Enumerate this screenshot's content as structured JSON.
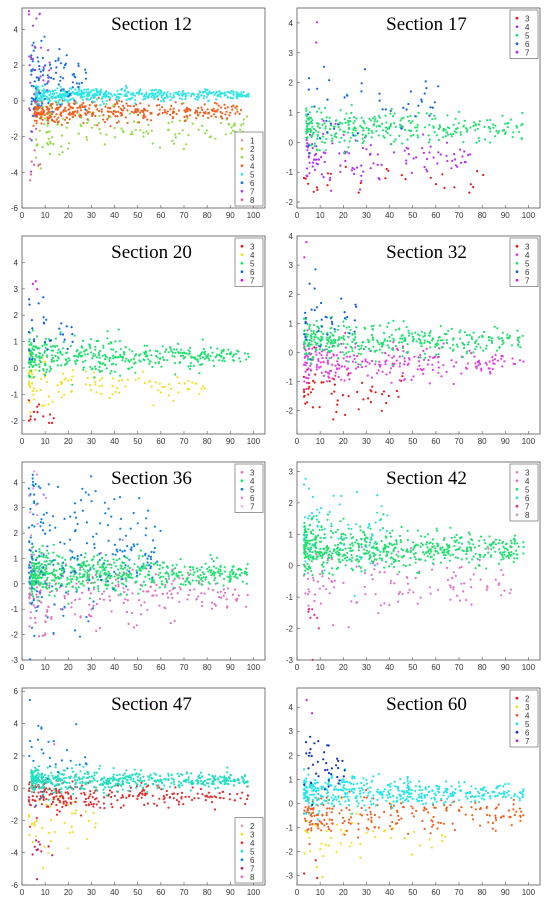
{
  "chart_data": [
    {
      "type": "scatter",
      "title": "Section 12",
      "x_ticks": [
        "0",
        "10",
        "20",
        "30",
        "40",
        "50",
        "60",
        "70",
        "80",
        "90",
        "100"
      ],
      "y_ticks": [
        "-6",
        "-4",
        "-2",
        "0",
        "2",
        "4"
      ],
      "xlim": [
        0,
        105
      ],
      "ylim": [
        -6,
        5.2
      ],
      "legend": "bottom-right",
      "series": [
        {
          "name": "1",
          "color": "#d8a0b8",
          "count": 0,
          "start": 5,
          "end": 5,
          "mean": 0,
          "spread": 0.1,
          "decay": 0.5
        },
        {
          "name": "2",
          "color": "#d8c040",
          "count": 0,
          "start": 5,
          "end": 5,
          "mean": 0,
          "spread": 0.1,
          "decay": 0.5
        },
        {
          "name": "3",
          "color": "#8fdc3c",
          "count": 140,
          "start": 6,
          "end": 98,
          "mean": -1.5,
          "spread": 0.35,
          "decay": 1.1
        },
        {
          "name": "4",
          "color": "#f06020",
          "count": 380,
          "start": 5,
          "end": 95,
          "mean": -0.6,
          "spread": 0.18,
          "decay": 0.8
        },
        {
          "name": "5",
          "color": "#2ee6e6",
          "count": 500,
          "start": 6,
          "end": 98,
          "mean": 0.35,
          "spread": 0.12,
          "decay": 0.6
        },
        {
          "name": "6",
          "color": "#1a6fe0",
          "count": 100,
          "start": 4,
          "end": 28,
          "mean": 1.1,
          "spread": 0.5,
          "decay": 1.2
        },
        {
          "name": "7",
          "color": "#b040e0",
          "count": 35,
          "start": 3,
          "end": 12,
          "mean": 2.8,
          "spread": 1.0,
          "decay": 1.2
        },
        {
          "name": "8",
          "color": "#e060a0",
          "count": 10,
          "start": 3,
          "end": 8,
          "mean": -3.8,
          "spread": 0.8,
          "decay": 0.3
        }
      ]
    },
    {
      "type": "scatter",
      "title": "Section 17",
      "x_ticks": [
        "0",
        "10",
        "20",
        "30",
        "40",
        "50",
        "60",
        "70",
        "80",
        "90",
        "100"
      ],
      "y_ticks": [
        "-2",
        "-1",
        "0",
        "1",
        "2",
        "3",
        "4"
      ],
      "xlim": [
        0,
        105
      ],
      "ylim": [
        -2.2,
        4.5
      ],
      "legend": "top-right",
      "series": [
        {
          "name": "3",
          "color": "#e01818",
          "count": 28,
          "start": 3,
          "end": 85,
          "mean": -1.3,
          "spread": 0.25,
          "decay": 0.3
        },
        {
          "name": "4",
          "color": "#b030f0",
          "count": 120,
          "start": 4,
          "end": 75,
          "mean": -0.5,
          "spread": 0.25,
          "decay": 0.6
        },
        {
          "name": "5",
          "color": "#20e070",
          "count": 330,
          "start": 4,
          "end": 98,
          "mean": 0.45,
          "spread": 0.18,
          "decay": 0.6
        },
        {
          "name": "6",
          "color": "#1060e0",
          "count": 45,
          "start": 4,
          "end": 72,
          "mean": 1.25,
          "spread": 0.35,
          "decay": 1.2
        },
        {
          "name": "7",
          "color": "#c020f0",
          "count": 2,
          "start": 6,
          "end": 9,
          "mean": 3.5,
          "spread": 0.4,
          "decay": 0.1
        }
      ]
    },
    {
      "type": "scatter",
      "title": "Section 20",
      "x_ticks": [
        "0",
        "10",
        "20",
        "30",
        "40",
        "50",
        "60",
        "70",
        "80",
        "90",
        "100"
      ],
      "y_ticks": [
        "-2",
        "-1",
        "0",
        "1",
        "2",
        "3",
        "4"
      ],
      "xlim": [
        0,
        105
      ],
      "ylim": [
        -2.5,
        5
      ],
      "legend": "top-right",
      "series": [
        {
          "name": "3",
          "color": "#e01818",
          "count": 14,
          "start": 3,
          "end": 14,
          "mean": -1.6,
          "spread": 0.3,
          "decay": 0.2
        },
        {
          "name": "4",
          "color": "#f0e020",
          "count": 110,
          "start": 3,
          "end": 80,
          "mean": -0.6,
          "spread": 0.25,
          "decay": 0.6
        },
        {
          "name": "5",
          "color": "#20e070",
          "count": 420,
          "start": 3,
          "end": 98,
          "mean": 0.45,
          "spread": 0.18,
          "decay": 0.7
        },
        {
          "name": "6",
          "color": "#1060e0",
          "count": 30,
          "start": 3,
          "end": 22,
          "mean": 1.4,
          "spread": 0.35,
          "decay": 0.8
        },
        {
          "name": "7",
          "color": "#e010e0",
          "count": 3,
          "start": 4,
          "end": 8,
          "mean": 3.3,
          "spread": 0.6,
          "decay": 0.2
        }
      ]
    },
    {
      "type": "scatter",
      "title": "Section 32",
      "x_ticks": [
        "0",
        "10",
        "20",
        "30",
        "40",
        "50",
        "60",
        "70",
        "80",
        "90",
        "100"
      ],
      "y_ticks": [
        "-2",
        "-1",
        "0",
        "1",
        "2",
        "3",
        "4"
      ],
      "xlim": [
        0,
        105
      ],
      "ylim": [
        -2.8,
        4
      ],
      "legend": "top-right",
      "series": [
        {
          "name": "3",
          "color": "#e01818",
          "count": 55,
          "start": 3,
          "end": 50,
          "mean": -1.4,
          "spread": 0.35,
          "decay": 0.4
        },
        {
          "name": "4",
          "color": "#e040e0",
          "count": 260,
          "start": 3,
          "end": 98,
          "mean": -0.35,
          "spread": 0.22,
          "decay": 0.6
        },
        {
          "name": "5",
          "color": "#20e070",
          "count": 380,
          "start": 3,
          "end": 98,
          "mean": 0.4,
          "spread": 0.18,
          "decay": 0.7
        },
        {
          "name": "6",
          "color": "#1060e0",
          "count": 35,
          "start": 3,
          "end": 26,
          "mean": 1.3,
          "spread": 0.35,
          "decay": 0.8
        },
        {
          "name": "7",
          "color": "#e020e0",
          "count": 2,
          "start": 3,
          "end": 6,
          "mean": 3.6,
          "spread": 0.4,
          "decay": 0.1
        }
      ]
    },
    {
      "type": "scatter",
      "title": "Section 36",
      "x_ticks": [
        "0",
        "10",
        "20",
        "30",
        "40",
        "50",
        "60",
        "70",
        "80",
        "90",
        "100"
      ],
      "y_ticks": [
        "-3",
        "-2",
        "-1",
        "0",
        "1",
        "2",
        "3",
        "4"
      ],
      "xlim": [
        0,
        105
      ],
      "ylim": [
        -3,
        4.8
      ],
      "legend": "top-right",
      "series": [
        {
          "name": "3",
          "color": "#e070c0",
          "count": 230,
          "start": 3,
          "end": 98,
          "mean": -0.45,
          "spread": 0.3,
          "decay": 1.0
        },
        {
          "name": "4",
          "color": "#20e070",
          "count": 600,
          "start": 4,
          "end": 98,
          "mean": 0.4,
          "spread": 0.2,
          "decay": 0.8
        },
        {
          "name": "5",
          "color": "#1080e0",
          "count": 220,
          "start": 3,
          "end": 60,
          "mean": 1.5,
          "spread": 0.6,
          "decay": 1.8
        },
        {
          "name": "6",
          "color": "#e090e0",
          "count": 12,
          "start": 3,
          "end": 12,
          "mean": 3.5,
          "spread": 0.6,
          "decay": 0.5
        },
        {
          "name": "7",
          "color": "#e0c0e0",
          "count": 0,
          "start": 3,
          "end": 3,
          "mean": 0,
          "spread": 0.1,
          "decay": 0.1
        }
      ]
    },
    {
      "type": "scatter",
      "title": "Section 42",
      "x_ticks": [
        "0",
        "10",
        "20",
        "30",
        "40",
        "50",
        "60",
        "70",
        "80",
        "90",
        "100"
      ],
      "y_ticks": [
        "-3",
        "-2",
        "-1",
        "0",
        "1",
        "2",
        "3"
      ],
      "xlim": [
        0,
        105
      ],
      "ylim": [
        -3,
        3.3
      ],
      "legend": "top-right",
      "series": [
        {
          "name": "3",
          "color": "#e090c0",
          "count": 0,
          "start": 3,
          "end": 3,
          "mean": 0,
          "spread": 0.1,
          "decay": 0.1
        },
        {
          "name": "4",
          "color": "#e070d0",
          "count": 130,
          "start": 3,
          "end": 98,
          "mean": -0.5,
          "spread": 0.3,
          "decay": 0.8
        },
        {
          "name": "5",
          "color": "#20e070",
          "count": 620,
          "start": 3,
          "end": 98,
          "mean": 0.55,
          "spread": 0.2,
          "decay": 0.7
        },
        {
          "name": "6",
          "color": "#30e0e0",
          "count": 60,
          "start": 3,
          "end": 40,
          "mean": 1.3,
          "spread": 0.4,
          "decay": 1.0
        },
        {
          "name": "7",
          "color": "#e03080",
          "count": 8,
          "start": 3,
          "end": 10,
          "mean": -1.8,
          "spread": 0.4,
          "decay": 0.2
        },
        {
          "name": "8",
          "color": "#d0a0c0",
          "count": 0,
          "start": 3,
          "end": 3,
          "mean": 0,
          "spread": 0.1,
          "decay": 0.1
        }
      ]
    },
    {
      "type": "scatter",
      "title": "Section 47",
      "x_ticks": [
        "0",
        "10",
        "20",
        "30",
        "40",
        "50",
        "60",
        "70",
        "80",
        "90",
        "100"
      ],
      "y_ticks": [
        "-6",
        "-4",
        "-2",
        "0",
        "2",
        "4",
        "6"
      ],
      "xlim": [
        0,
        105
      ],
      "ylim": [
        -6,
        6.2
      ],
      "legend": "bottom-right",
      "series": [
        {
          "name": "2",
          "color": "#e0a0c0",
          "count": 0,
          "start": 3,
          "end": 3,
          "mean": 0,
          "spread": 0.1,
          "decay": 0.1
        },
        {
          "name": "3",
          "color": "#f0e020",
          "count": 40,
          "start": 3,
          "end": 35,
          "mean": -2.0,
          "spread": 0.6,
          "decay": 0.8
        },
        {
          "name": "4",
          "color": "#e03030",
          "count": 260,
          "start": 3,
          "end": 98,
          "mean": -0.5,
          "spread": 0.25,
          "decay": 0.8
        },
        {
          "name": "5",
          "color": "#20e0c0",
          "count": 500,
          "start": 4,
          "end": 98,
          "mean": 0.45,
          "spread": 0.2,
          "decay": 0.7
        },
        {
          "name": "6",
          "color": "#1080e0",
          "count": 30,
          "start": 3,
          "end": 28,
          "mean": 1.8,
          "spread": 0.6,
          "decay": 1.0
        },
        {
          "name": "7",
          "color": "#c02060",
          "count": 12,
          "start": 3,
          "end": 14,
          "mean": -3.8,
          "spread": 0.5,
          "decay": 0.3
        },
        {
          "name": "8",
          "color": "#e070d0",
          "count": 3,
          "start": 10,
          "end": 97,
          "mean": 4.8,
          "spread": 0.5,
          "decay": 0.1
        }
      ]
    },
    {
      "type": "scatter",
      "title": "Section 60",
      "x_ticks": [
        "0",
        "10",
        "20",
        "30",
        "40",
        "50",
        "60",
        "70",
        "80",
        "90",
        "100"
      ],
      "y_ticks": [
        "-3",
        "-2",
        "-1",
        "0",
        "1",
        "2",
        "3",
        "4"
      ],
      "xlim": [
        0,
        105
      ],
      "ylim": [
        -3.4,
        4.8
      ],
      "legend": "top-right",
      "series": [
        {
          "name": "2",
          "color": "#e01818",
          "count": 3,
          "start": 3,
          "end": 10,
          "mean": -2.8,
          "spread": 0.3,
          "decay": 0.1
        },
        {
          "name": "3",
          "color": "#f0e020",
          "count": 50,
          "start": 3,
          "end": 70,
          "mean": -1.4,
          "spread": 0.4,
          "decay": 0.5
        },
        {
          "name": "4",
          "color": "#f06020",
          "count": 210,
          "start": 3,
          "end": 98,
          "mean": -0.5,
          "spread": 0.22,
          "decay": 0.7
        },
        {
          "name": "5",
          "color": "#20e6e6",
          "count": 430,
          "start": 3,
          "end": 98,
          "mean": 0.45,
          "spread": 0.18,
          "decay": 0.7
        },
        {
          "name": "6",
          "color": "#1030c0",
          "count": 40,
          "start": 3,
          "end": 22,
          "mean": 1.5,
          "spread": 0.4,
          "decay": 0.9
        },
        {
          "name": "7",
          "color": "#c020e0",
          "count": 3,
          "start": 4,
          "end": 8,
          "mean": 4.3,
          "spread": 0.5,
          "decay": 0.1
        }
      ]
    }
  ]
}
